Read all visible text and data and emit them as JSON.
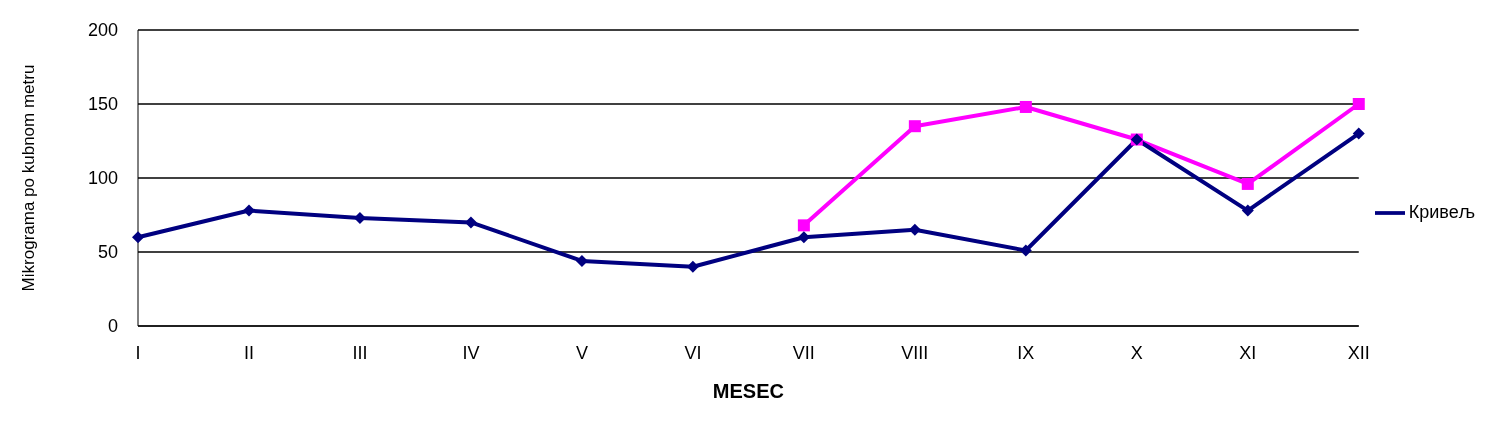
{
  "chart_data": {
    "type": "line",
    "xlabel": "MESEC",
    "ylabel": "Mikrograma po kubnom metru",
    "categories": [
      "I",
      "II",
      "III",
      "IV",
      "V",
      "VI",
      "VII",
      "VIII",
      "IX",
      "X",
      "XI",
      "XII"
    ],
    "series": [
      {
        "name": "Кривељ",
        "color": "#000080",
        "marker": "diamond",
        "values": [
          60,
          78,
          73,
          70,
          44,
          40,
          60,
          65,
          51,
          126,
          78,
          130
        ]
      },
      {
        "color": "#ff00ff",
        "marker": "square",
        "values": [
          null,
          null,
          null,
          null,
          null,
          null,
          68,
          135,
          148,
          126,
          96,
          150
        ]
      }
    ],
    "ylim": [
      0,
      200
    ],
    "yticks": [
      0,
      50,
      100,
      150,
      200
    ],
    "grid": "y",
    "legend": "right",
    "line_style": "solid"
  }
}
